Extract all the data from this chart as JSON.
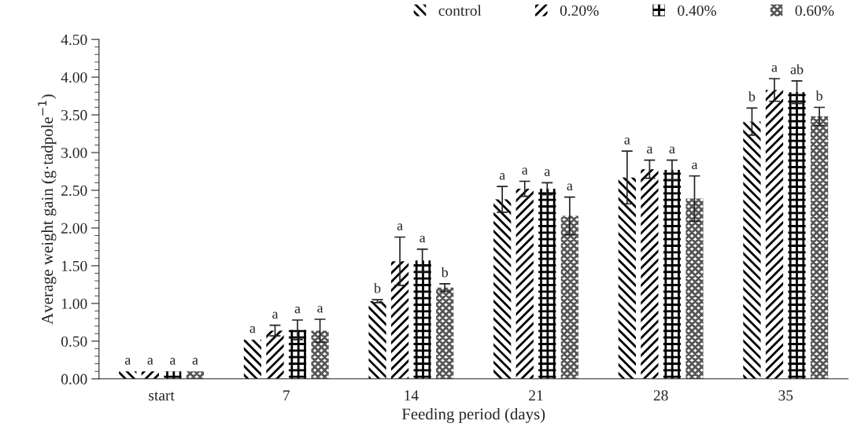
{
  "chart_data": {
    "type": "bar",
    "categories": [
      "start",
      "7",
      "14",
      "21",
      "28",
      "35"
    ],
    "xlabel": "Feeding period (days)",
    "ylabel": "Average weight gain (g·tadpole$^{−1}$)",
    "ylim": [
      0,
      4.5
    ],
    "yticks": [
      {
        "value": 0,
        "label": "0.00"
      },
      {
        "value": 0.1,
        "label": null
      },
      {
        "value": 0.2,
        "label": null
      },
      {
        "value": 0.3,
        "label": null
      },
      {
        "value": 0.4,
        "label": null
      },
      {
        "value": 0.5,
        "label": "0.50"
      },
      {
        "value": 0.6,
        "label": null
      },
      {
        "value": 0.7,
        "label": null
      },
      {
        "value": 0.8,
        "label": null
      },
      {
        "value": 0.9,
        "label": null
      },
      {
        "value": 1.0,
        "label": "1.00"
      },
      {
        "value": 1.1,
        "label": null
      },
      {
        "value": 1.2,
        "label": null
      },
      {
        "value": 1.3,
        "label": null
      },
      {
        "value": 1.4,
        "label": null
      },
      {
        "value": 1.5,
        "label": "1.50"
      },
      {
        "value": 1.6,
        "label": null
      },
      {
        "value": 1.7,
        "label": null
      },
      {
        "value": 1.8,
        "label": null
      },
      {
        "value": 1.9,
        "label": null
      },
      {
        "value": 2.0,
        "label": "2.00"
      },
      {
        "value": 2.1,
        "label": null
      },
      {
        "value": 2.2,
        "label": null
      },
      {
        "value": 2.3,
        "label": null
      },
      {
        "value": 2.4,
        "label": null
      },
      {
        "value": 2.5,
        "label": "2.50"
      },
      {
        "value": 2.6,
        "label": null
      },
      {
        "value": 2.7,
        "label": null
      },
      {
        "value": 2.8,
        "label": null
      },
      {
        "value": 2.9,
        "label": null
      },
      {
        "value": 3.0,
        "label": "3.00"
      },
      {
        "value": 3.1,
        "label": null
      },
      {
        "value": 3.2,
        "label": null
      },
      {
        "value": 3.3,
        "label": null
      },
      {
        "value": 3.4,
        "label": null
      },
      {
        "value": 3.5,
        "label": "3.50"
      },
      {
        "value": 3.6,
        "label": null
      },
      {
        "value": 3.7,
        "label": null
      },
      {
        "value": 3.8,
        "label": null
      },
      {
        "value": 3.9,
        "label": null
      },
      {
        "value": 4.0,
        "label": "4.00"
      },
      {
        "value": 4.1,
        "label": null
      },
      {
        "value": 4.2,
        "label": null
      },
      {
        "value": 4.3,
        "label": null
      },
      {
        "value": 4.4,
        "label": null
      },
      {
        "value": 4.5,
        "label": "4.50"
      }
    ],
    "grid": false,
    "legend": "top right",
    "series": [
      {
        "name": "control",
        "color": "#000000",
        "values": [
          0.1,
          0.52,
          1.03,
          2.38,
          2.67,
          3.41
        ],
        "errors": [
          null,
          null,
          0.02,
          0.17,
          0.35,
          0.18
        ],
        "value_labels": [
          "a",
          "a",
          "b",
          "a",
          "a",
          "b"
        ]
      },
      {
        "name": "0.20%",
        "color": "#000000",
        "values": [
          0.1,
          0.64,
          1.56,
          2.52,
          2.78,
          3.83
        ],
        "errors": [
          null,
          0.07,
          0.32,
          0.1,
          0.12,
          0.15
        ],
        "value_labels": [
          "a",
          "a",
          "a",
          "a",
          "a",
          "a"
        ]
      },
      {
        "name": "0.40%",
        "color": "#000000",
        "values": [
          0.1,
          0.65,
          1.57,
          2.52,
          2.77,
          3.8
        ],
        "errors": [
          null,
          0.13,
          0.15,
          0.08,
          0.13,
          0.15
        ],
        "value_labels": [
          "a",
          "a",
          "a",
          "a",
          "a",
          "ab"
        ]
      },
      {
        "name": "0.60%",
        "color": "#555555",
        "values": [
          0.1,
          0.64,
          1.21,
          2.16,
          2.39,
          3.48
        ],
        "errors": [
          null,
          0.15,
          0.05,
          0.25,
          0.3,
          0.12
        ],
        "value_labels": [
          "a",
          "a",
          "b",
          "a",
          "a",
          "b"
        ]
      }
    ]
  }
}
